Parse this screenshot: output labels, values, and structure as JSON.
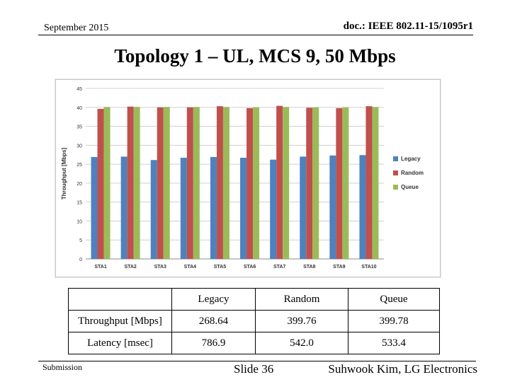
{
  "header": {
    "date": "September 2015",
    "doc": "doc.: IEEE 802.11-15/1095r1"
  },
  "slide": {
    "title": "Topology 1 – UL, MCS 9, 50 Mbps"
  },
  "chart_data": {
    "type": "bar",
    "categories": [
      "STA1",
      "STA2",
      "STA3",
      "STA4",
      "STA5",
      "STA6",
      "STA7",
      "STA8",
      "STA9",
      "STA10"
    ],
    "series": [
      {
        "name": "Legacy",
        "color": "#4f81bd",
        "values": [
          26.9,
          27.0,
          26.1,
          26.7,
          26.9,
          26.7,
          26.2,
          27.0,
          27.3,
          27.4
        ]
      },
      {
        "name": "Random",
        "color": "#c0504d",
        "values": [
          39.6,
          40.2,
          40.0,
          40.0,
          40.3,
          39.8,
          40.4,
          39.9,
          39.8,
          40.3
        ]
      },
      {
        "name": "Queue",
        "color": "#9bbb59",
        "values": [
          40.1,
          40.1,
          40.1,
          40.1,
          40.1,
          40.0,
          40.1,
          40.0,
          40.0,
          40.1
        ]
      }
    ],
    "title": "",
    "xlabel": "",
    "ylabel": "Throughput [Mbps]",
    "ylim": [
      0,
      45
    ],
    "yticks": [
      0,
      5,
      10,
      15,
      20,
      25,
      30,
      35,
      40,
      45
    ],
    "grid": true,
    "legend": "right"
  },
  "table": {
    "headers": [
      "",
      "Legacy",
      "Random",
      "Queue"
    ],
    "rows": [
      [
        "Throughput [Mbps]",
        "268.64",
        "399.76",
        "399.78"
      ],
      [
        "Latency [msec]",
        "786.9",
        "542.0",
        "533.4"
      ]
    ]
  },
  "footer": {
    "submission": "Submission",
    "slide": "Slide 36",
    "author": "Suhwook Kim, LG Electronics"
  }
}
